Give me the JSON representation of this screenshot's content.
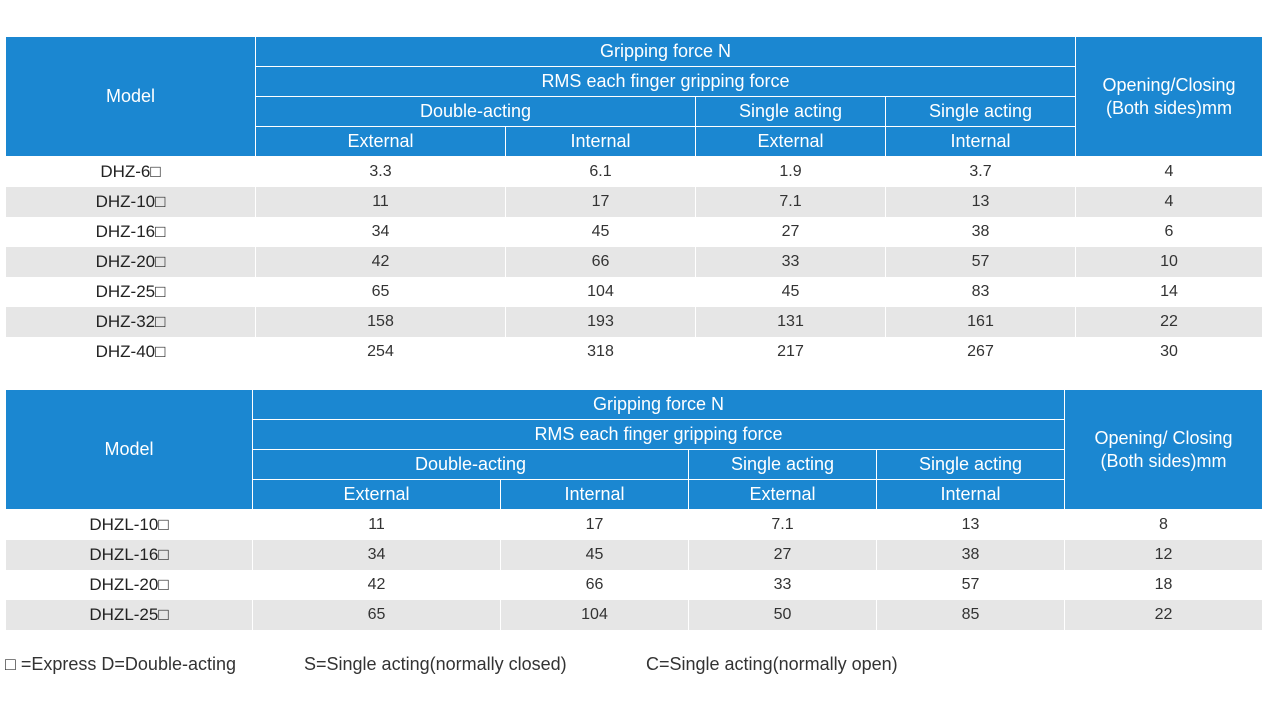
{
  "table1": {
    "header": {
      "model": "Model",
      "gripping_force": "Gripping force N",
      "rms": "RMS each finger gripping force",
      "double_acting": "Double-acting",
      "single_acting_1": "Single acting",
      "single_acting_2": "Single acting",
      "external_1": "External",
      "internal_1": "Internal",
      "external_2": "External",
      "internal_2": "Internal",
      "opening_line1": "Opening/Closing",
      "opening_line2": "(Both sides)mm"
    },
    "rows": [
      {
        "model": "DHZ-6□",
        "ext_d": "3.3",
        "int_d": "6.1",
        "ext_s": "1.9",
        "int_s": "3.7",
        "opening": "4"
      },
      {
        "model": "DHZ-10□",
        "ext_d": "11",
        "int_d": "17",
        "ext_s": "7.1",
        "int_s": "13",
        "opening": "4"
      },
      {
        "model": "DHZ-16□",
        "ext_d": "34",
        "int_d": "45",
        "ext_s": "27",
        "int_s": "38",
        "opening": "6"
      },
      {
        "model": "DHZ-20□",
        "ext_d": "42",
        "int_d": "66",
        "ext_s": "33",
        "int_s": "57",
        "opening": "10"
      },
      {
        "model": "DHZ-25□",
        "ext_d": "65",
        "int_d": "104",
        "ext_s": "45",
        "int_s": "83",
        "opening": "14"
      },
      {
        "model": "DHZ-32□",
        "ext_d": "158",
        "int_d": "193",
        "ext_s": "131",
        "int_s": "161",
        "opening": "22"
      },
      {
        "model": "DHZ-40□",
        "ext_d": "254",
        "int_d": "318",
        "ext_s": "217",
        "int_s": "267",
        "opening": "30"
      }
    ]
  },
  "table2": {
    "header": {
      "model": "Model",
      "gripping_force": "Gripping force N",
      "rms": "RMS each finger gripping force",
      "double_acting": "Double-acting",
      "single_acting_1": "Single acting",
      "single_acting_2": "Single acting",
      "external_1": "External",
      "internal_1": "Internal",
      "external_2": "External",
      "internal_2": "Internal",
      "opening_line1": "Opening/ Closing",
      "opening_line2": "(Both sides)mm"
    },
    "rows": [
      {
        "model": "DHZL-10□",
        "ext_d": "11",
        "int_d": "17",
        "ext_s": "7.1",
        "int_s": "13",
        "opening": "8"
      },
      {
        "model": "DHZL-16□",
        "ext_d": "34",
        "int_d": "45",
        "ext_s": "27",
        "int_s": "38",
        "opening": "12"
      },
      {
        "model": "DHZL-20□",
        "ext_d": "42",
        "int_d": "66",
        "ext_s": "33",
        "int_s": "57",
        "opening": "18"
      },
      {
        "model": "DHZL-25□",
        "ext_d": "65",
        "int_d": "104",
        "ext_s": "50",
        "int_s": "85",
        "opening": "22"
      }
    ]
  },
  "legend": {
    "express": "□ =Express D=Double-acting",
    "single_closed": "S=Single acting(normally closed)",
    "single_open": "C=Single acting(normally open)"
  },
  "colors": {
    "header_blue": "#1b87d1",
    "stripe_gray": "#e6e6e6"
  }
}
